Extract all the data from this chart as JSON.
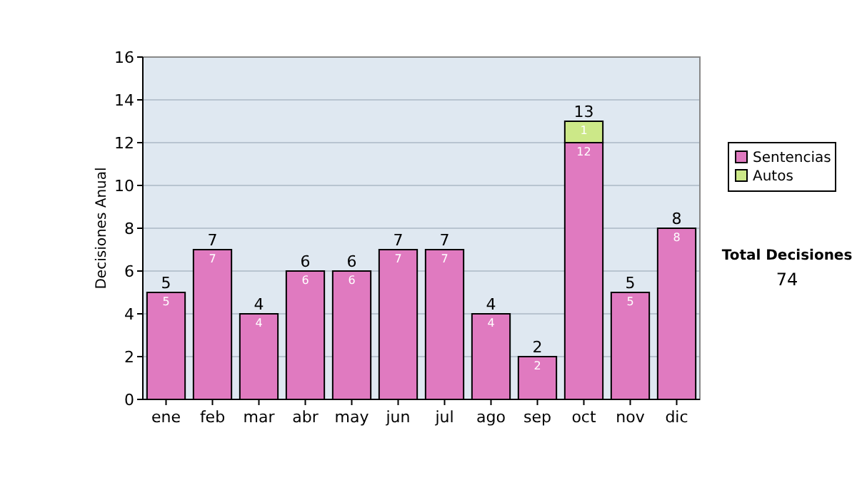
{
  "chart_data": {
    "type": "bar",
    "stacked": true,
    "ylabel": "Decisiones Anual",
    "categories": [
      "ene",
      "feb",
      "mar",
      "abr",
      "may",
      "jun",
      "jul",
      "ago",
      "sep",
      "oct",
      "nov",
      "dic"
    ],
    "series": [
      {
        "name": "Sentencias",
        "color": "#e07ac0",
        "values": [
          5,
          7,
          4,
          6,
          6,
          7,
          7,
          4,
          2,
          12,
          5,
          8
        ],
        "value_labels": [
          "5",
          "7",
          "4",
          "6",
          "6",
          "7",
          "7",
          "4",
          "2",
          "12",
          "5",
          "8"
        ]
      },
      {
        "name": "Autos",
        "color": "#cce888",
        "values": [
          null,
          null,
          null,
          null,
          null,
          null,
          null,
          null,
          null,
          1,
          null,
          null
        ],
        "value_labels": [
          null,
          null,
          null,
          null,
          null,
          null,
          null,
          null,
          null,
          "1",
          null,
          null
        ]
      }
    ],
    "totals": [
      "5",
      "7",
      "4",
      "6",
      "6",
      "7",
      "7",
      "4",
      "2",
      "13",
      "5",
      "8"
    ],
    "ylim": [
      0,
      16
    ],
    "yticks": [
      0,
      2,
      4,
      6,
      8,
      10,
      12,
      14,
      16
    ],
    "grid": "y",
    "legend": "right",
    "annotations": [
      "Total Decisiones",
      "74"
    ]
  }
}
